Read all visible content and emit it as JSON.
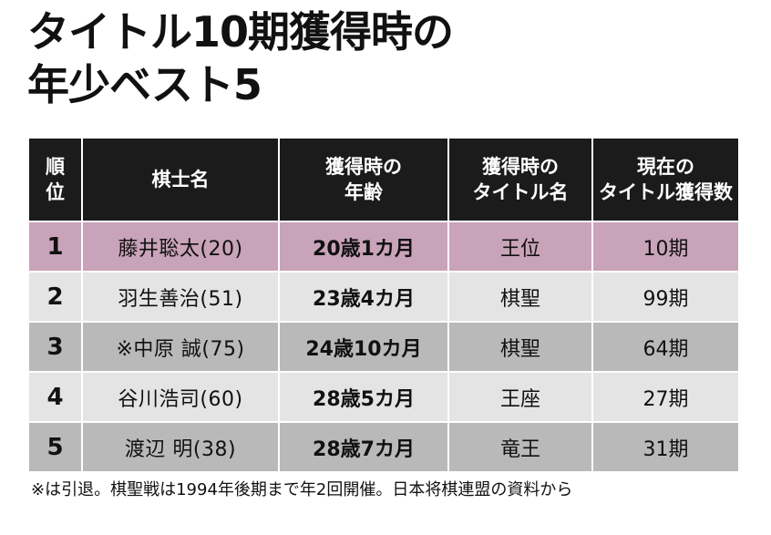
{
  "title": {
    "line1": "タイトル10期獲得時の",
    "line2": "年少ベスト5"
  },
  "table": {
    "headers": [
      [
        "順",
        "位"
      ],
      [
        "棋士名"
      ],
      [
        "獲得時の",
        "年齢"
      ],
      [
        "獲得時の",
        "タイトル名"
      ],
      [
        "現在の",
        "タイトル獲得数"
      ]
    ],
    "rows": [
      {
        "rank": "1",
        "name": "藤井聡太(20)",
        "age": "20歳1カ月",
        "title": "王位",
        "count": "10期"
      },
      {
        "rank": "2",
        "name": "羽生善治(51)",
        "age": "23歳4カ月",
        "title": "棋聖",
        "count": "99期"
      },
      {
        "rank": "3",
        "name": "※中原 誠(75)",
        "age": "24歳10カ月",
        "title": "棋聖",
        "count": "64期"
      },
      {
        "rank": "4",
        "name": "谷川浩司(60)",
        "age": "28歳5カ月",
        "title": "王座",
        "count": "27期"
      },
      {
        "rank": "5",
        "name": "渡辺 明(38)",
        "age": "28歳7カ月",
        "title": "竜王",
        "count": "31期"
      }
    ]
  },
  "footnote": "※は引退。棋聖戦は1994年後期まで年2回開催。日本将棋連盟の資料から",
  "colors": {
    "header_bg": "#1b1b1b",
    "highlight_row": "#c9a3b9",
    "row_dark": "#b9b9b9",
    "row_light": "#e4e4e4"
  }
}
